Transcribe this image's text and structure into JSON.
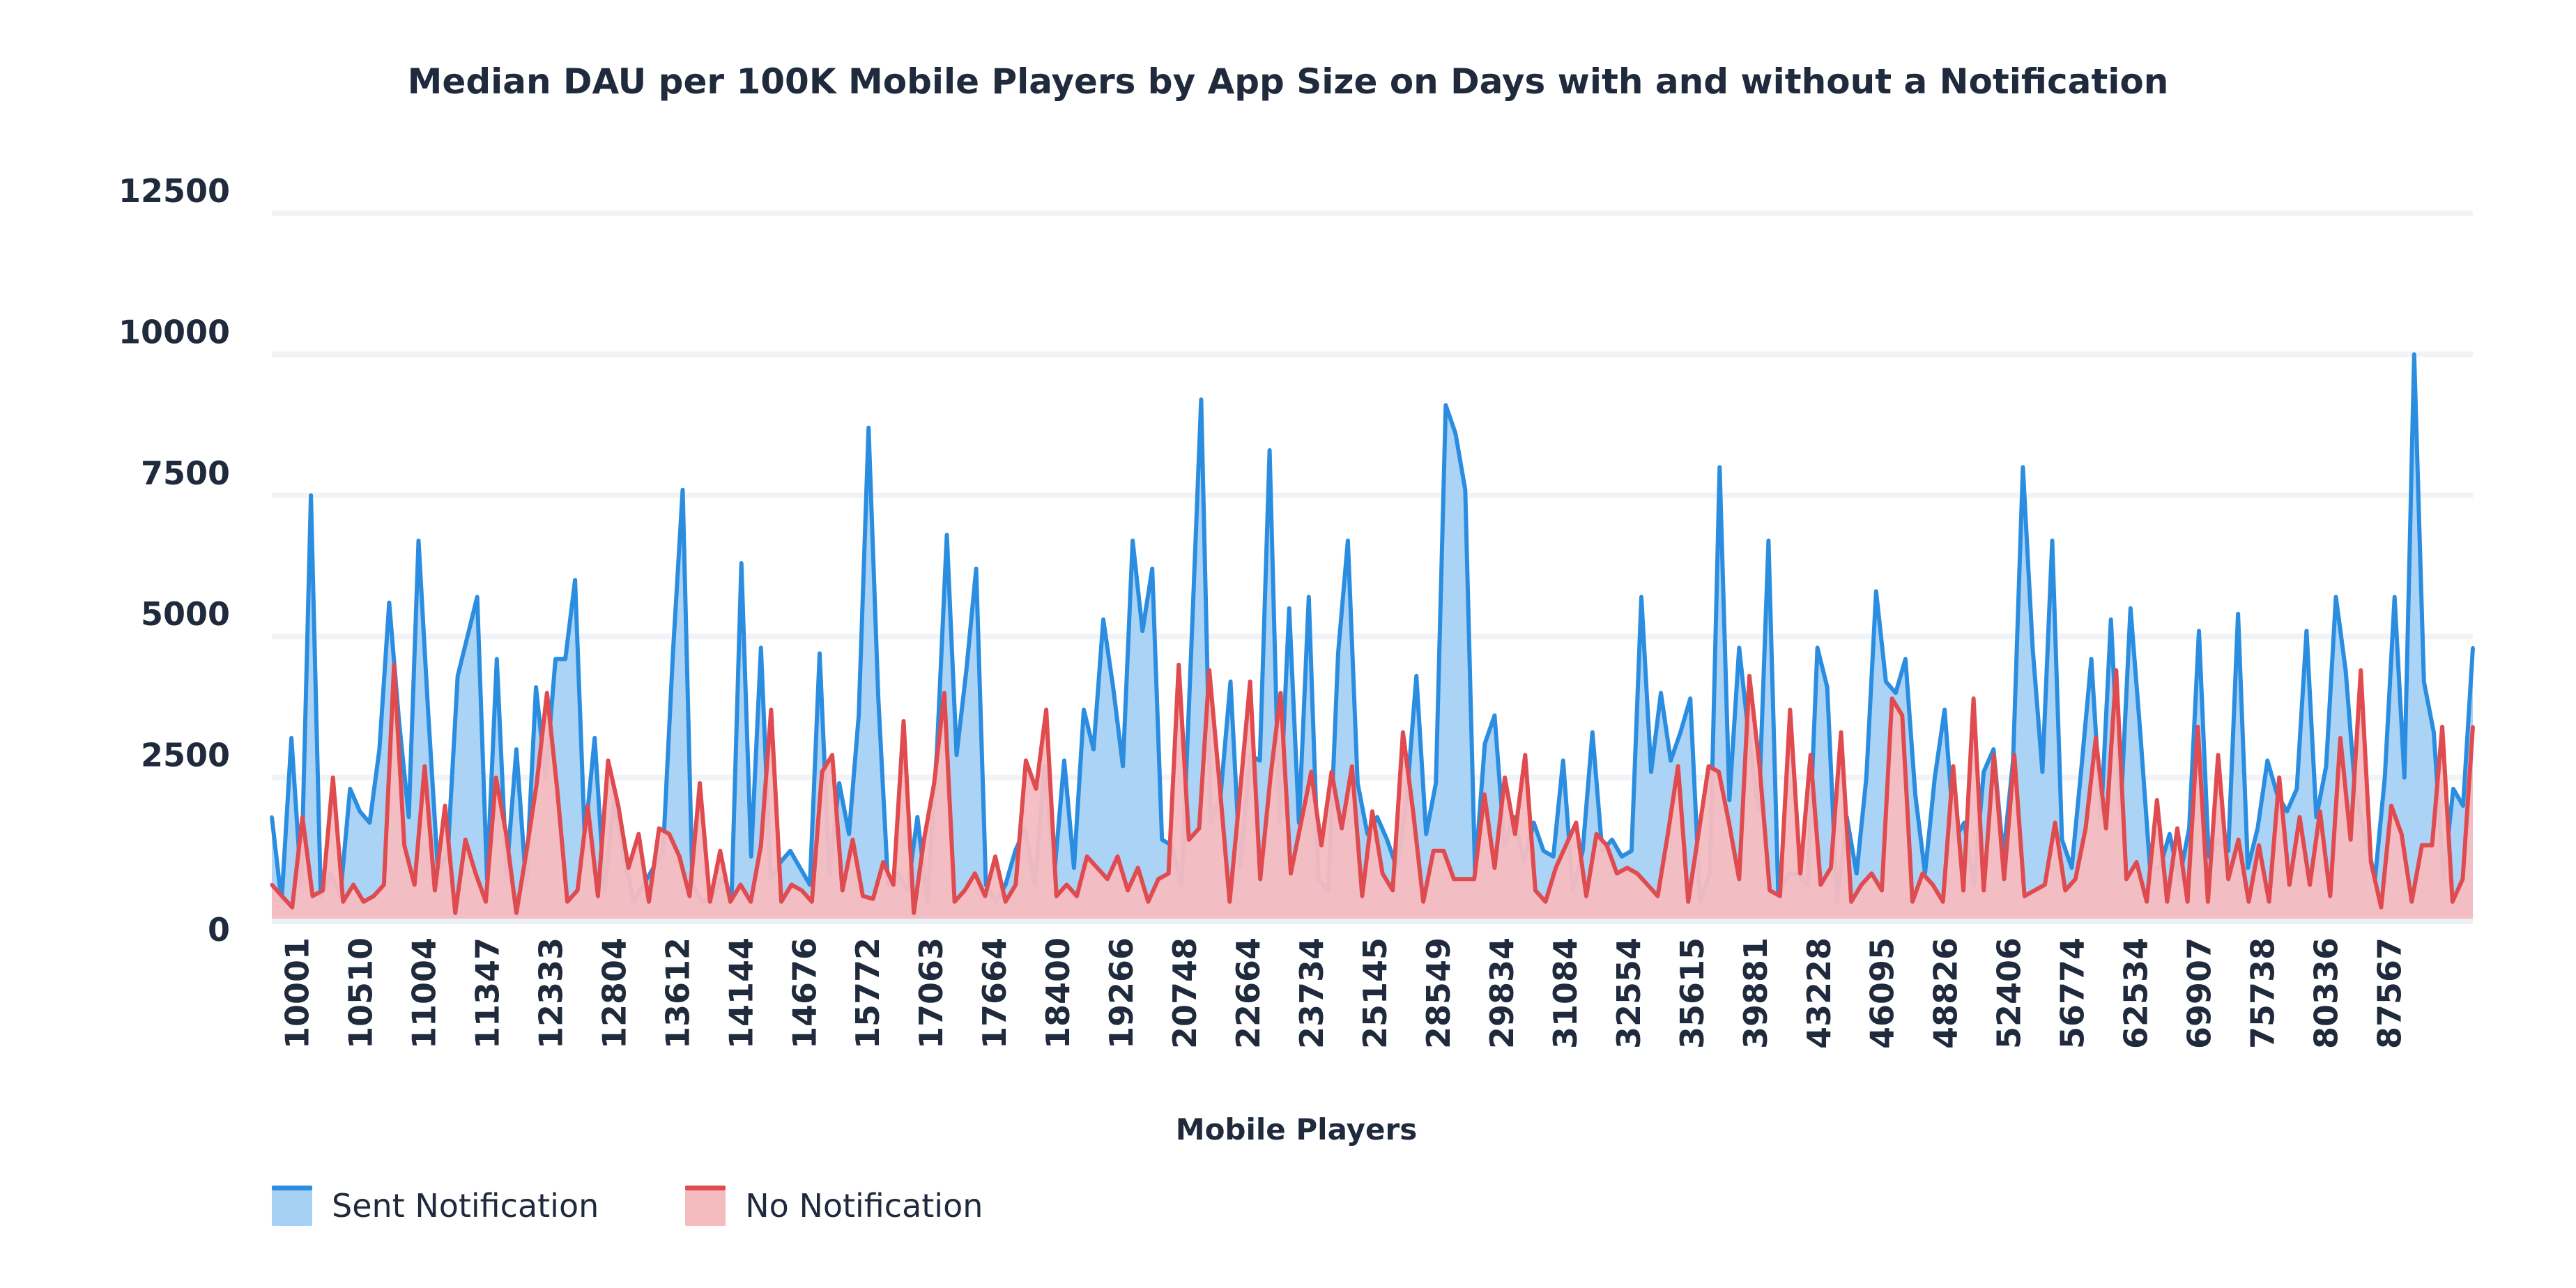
{
  "chart_data": {
    "type": "area",
    "title": "Median DAU per 100K Mobile Players by App Size on Days with and without a Notification",
    "xlabel": "Mobile Players",
    "ylabel": "",
    "ylim": [
      0,
      12500
    ],
    "y_ticks": [
      0,
      2500,
      5000,
      7500,
      10000,
      12500
    ],
    "x_tick_labels": [
      "10001",
      "10510",
      "11004",
      "11347",
      "12333",
      "12804",
      "13612",
      "14144",
      "14676",
      "15772",
      "17063",
      "17664",
      "18400",
      "19266",
      "20748",
      "22664",
      "23734",
      "25145",
      "28549",
      "29834",
      "31084",
      "32554",
      "35615",
      "39881",
      "43228",
      "46095",
      "48826",
      "52406",
      "56774",
      "62534",
      "69907",
      "75738",
      "80336",
      "87567"
    ],
    "grid": true,
    "legend_position": "bottom-left",
    "series": [
      {
        "name": "Sent Notification",
        "line_color": "#2b8de0",
        "fill_color": "#a6d1f5",
        "values": [
          1800,
          300,
          3200,
          600,
          7500,
          400,
          800,
          400,
          2300,
          1900,
          1700,
          3000,
          5600,
          3500,
          1800,
          6700,
          3600,
          800,
          1200,
          4300,
          5000,
          5700,
          700,
          4600,
          800,
          3000,
          600,
          4100,
          2500,
          4600,
          4600,
          6000,
          1400,
          3200,
          500,
          2100,
          1100,
          300,
          600,
          900,
          1200,
          4700,
          7600,
          600,
          300,
          400,
          700,
          400,
          6300,
          1100,
          4800,
          700,
          1000,
          1200,
          900,
          600,
          4700,
          800,
          2400,
          1500,
          3600,
          8700,
          3900,
          600,
          800,
          500,
          1800,
          300,
          3000,
          6800,
          2900,
          4400,
          6200,
          600,
          300,
          600,
          1200,
          1600,
          600,
          2700,
          800,
          2800,
          900,
          3700,
          3000,
          5300,
          4100,
          2700,
          6700,
          5100,
          6200,
          1400,
          1300,
          600,
          4800,
          9200,
          1700,
          2200,
          4200,
          900,
          2900,
          2800,
          8300,
          1700,
          5500,
          1700,
          5700,
          700,
          500,
          4700,
          6700,
          2400,
          1500,
          1800,
          1400,
          900,
          2100,
          4300,
          1500,
          2400,
          9100,
          8600,
          7600,
          800,
          3100,
          3600,
          1300,
          1800,
          1000,
          1700,
          1200,
          1100,
          2800,
          500,
          1200,
          3300,
          1200,
          1400,
          1100,
          1200,
          5700,
          2600,
          4000,
          2800,
          3300,
          3900,
          300,
          800,
          8000,
          2100,
          4800,
          3200,
          1900,
          6700,
          400,
          800,
          800,
          600,
          4800,
          4100,
          300,
          1800,
          800,
          2500,
          5800,
          4200,
          4000,
          4600,
          2200,
          800,
          2500,
          3700,
          1400,
          1700,
          600,
          2600,
          3000,
          1100,
          2800,
          8000,
          4800,
          2600,
          6700,
          1400,
          900,
          2700,
          4600,
          1800,
          5300,
          1900,
          5500,
          3300,
          900,
          900,
          1500,
          700,
          1600,
          5100,
          1100,
          1400,
          1200,
          5400,
          900,
          1600,
          2800,
          2200,
          1900,
          2300,
          5100,
          1800,
          2700,
          5700,
          4400,
          2200,
          1500,
          700,
          2500,
          5700,
          2500,
          10000,
          4200,
          3300,
          700,
          2300,
          2000,
          4800
        ]
      },
      {
        "name": "No Notification",
        "line_color": "#df4b4f",
        "fill_color": "#f5bcc0",
        "values": [
          600,
          400,
          200,
          1800,
          400,
          500,
          2500,
          300,
          600,
          300,
          400,
          600,
          4500,
          1300,
          600,
          2700,
          500,
          2000,
          100,
          1400,
          800,
          300,
          2500,
          1500,
          100,
          1200,
          2400,
          4000,
          2300,
          300,
          500,
          2000,
          400,
          2800,
          2000,
          900,
          1500,
          300,
          1600,
          1500,
          1100,
          400,
          2400,
          300,
          1200,
          300,
          600,
          300,
          1300,
          3700,
          300,
          600,
          500,
          300,
          2600,
          2900,
          500,
          1400,
          400,
          350,
          1000,
          600,
          3500,
          100,
          1400,
          2400,
          4000,
          300,
          500,
          800,
          400,
          1100,
          300,
          600,
          2800,
          2300,
          3700,
          400,
          600,
          400,
          1100,
          900,
          700,
          1100,
          500,
          900,
          300,
          700,
          800,
          4500,
          1400,
          1600,
          4400,
          2400,
          300,
          2200,
          4200,
          700,
          2500,
          4000,
          800,
          1700,
          2600,
          1300,
          2600,
          1600,
          2700,
          400,
          1900,
          800,
          500,
          3300,
          1900,
          300,
          1200,
          1200,
          700,
          700,
          700,
          2200,
          900,
          2500,
          1500,
          2900,
          500,
          300,
          900,
          1300,
          1700,
          400,
          1500,
          1300,
          800,
          900,
          800,
          600,
          400,
          1500,
          2700,
          300,
          1500,
          2700,
          2600,
          1700,
          700,
          4300,
          2700,
          500,
          400,
          3700,
          800,
          2900,
          600,
          900,
          3300,
          300,
          600,
          800,
          500,
          3900,
          3600,
          300,
          800,
          600,
          300,
          2700,
          500,
          3900,
          500,
          2900,
          700,
          2900,
          400,
          500,
          600,
          1700,
          500,
          700,
          1600,
          3200,
          1600,
          4400,
          700,
          1000,
          300,
          2100,
          300,
          1600,
          300,
          3400,
          300,
          2900,
          700,
          1400,
          300,
          1300,
          300,
          2500,
          600,
          1800,
          600,
          1900,
          400,
          3200,
          1400,
          4400,
          1000,
          200,
          2000,
          1500,
          300,
          1300,
          1300,
          3400,
          300,
          700,
          3400
        ]
      }
    ]
  }
}
